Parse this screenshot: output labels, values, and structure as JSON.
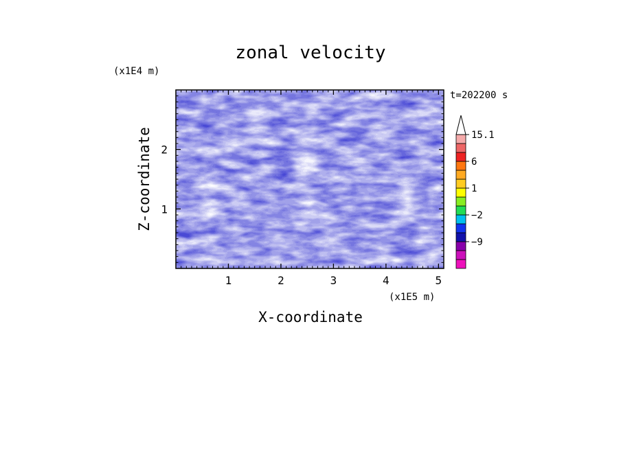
{
  "chart_data": {
    "type": "heatmap",
    "title": "zonal velocity",
    "xlabel": "X-coordinate",
    "ylabel": "Z-coordinate",
    "x_unit": "(x1E5 m)",
    "y_unit": "(x1E4 m)",
    "time_label": "t=202200 s",
    "xlim": [
      0.0,
      5.1
    ],
    "ylim": [
      0.0,
      3.0
    ],
    "x_ticks": [
      1,
      2,
      3,
      4,
      5
    ],
    "x_tick_labels": [
      "1",
      "2",
      "3",
      "4",
      "5"
    ],
    "y_ticks": [
      1,
      2
    ],
    "y_tick_labels": [
      "1",
      "2"
    ],
    "colorbar": {
      "levels": [
        -15,
        -12,
        -9,
        -6,
        -4,
        -2,
        -1,
        0,
        1,
        2,
        4,
        6,
        9,
        12,
        15.1
      ],
      "colors": [
        "#ee11bb",
        "#cc11bb",
        "#8800aa",
        "#1111aa",
        "#1133ee",
        "#00c0ee",
        "#22dd55",
        "#88ee22",
        "#ffff00",
        "#ffcc22",
        "#ffaa22",
        "#ff7711",
        "#ee2222",
        "#ee6666",
        "#f5aaaa"
      ],
      "labels": [
        "15.1",
        "6",
        "1",
        "−2",
        "−9"
      ],
      "label_values": [
        15.1,
        6,
        1,
        -2,
        -9
      ],
      "extend": "max"
    },
    "field_description_unprinted": "turbulent zonal velocity field, roughly -15 to 15"
  }
}
